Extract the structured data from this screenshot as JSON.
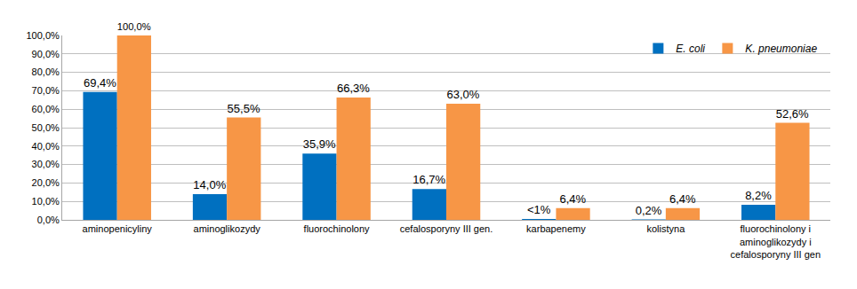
{
  "chart_data": {
    "type": "bar",
    "categories": [
      "aminopenicyliny",
      "aminoglikozydy",
      "fluorochinolony",
      "cefalosporyny III gen.",
      "karbapenemy",
      "kolistyna",
      "fluorochinolony i aminoglikozydy i cefalosporyny III gen"
    ],
    "series": [
      {
        "name": "E. coli",
        "color": "#0070c0",
        "values": [
          69.4,
          14.0,
          35.9,
          16.7,
          0.5,
          0.2,
          8.2
        ],
        "value_labels": [
          "69,4%",
          "14,0%",
          "35,9%",
          "16,7%",
          "<1%",
          "0,2%",
          "8,2%"
        ]
      },
      {
        "name": "K. pneumoniae",
        "color": "#f79646",
        "values": [
          100.0,
          55.5,
          66.3,
          63.0,
          6.4,
          6.4,
          52.6
        ],
        "value_labels": [
          "100,0%",
          "55,5%",
          "66,3%",
          "63,0%",
          "6,4%",
          "6,4%",
          "52,6%"
        ]
      }
    ],
    "ylim": [
      0,
      100
    ],
    "yticks": [
      {
        "value": 0,
        "label": "0,0%"
      },
      {
        "value": 10,
        "label": "10,0%"
      },
      {
        "value": 20,
        "label": "20,0%"
      },
      {
        "value": 30,
        "label": "30,0%"
      },
      {
        "value": 40,
        "label": "40,0%"
      },
      {
        "value": 50,
        "label": "50,0%"
      },
      {
        "value": 60,
        "label": "60,0%"
      },
      {
        "value": 70,
        "label": "70,0%"
      },
      {
        "value": 80,
        "label": "80,0%"
      },
      {
        "value": 90,
        "label": "90,0%"
      },
      {
        "value": 100,
        "label": "100,0%"
      }
    ],
    "grid": true,
    "legend": "upper right",
    "data_labels": true
  }
}
